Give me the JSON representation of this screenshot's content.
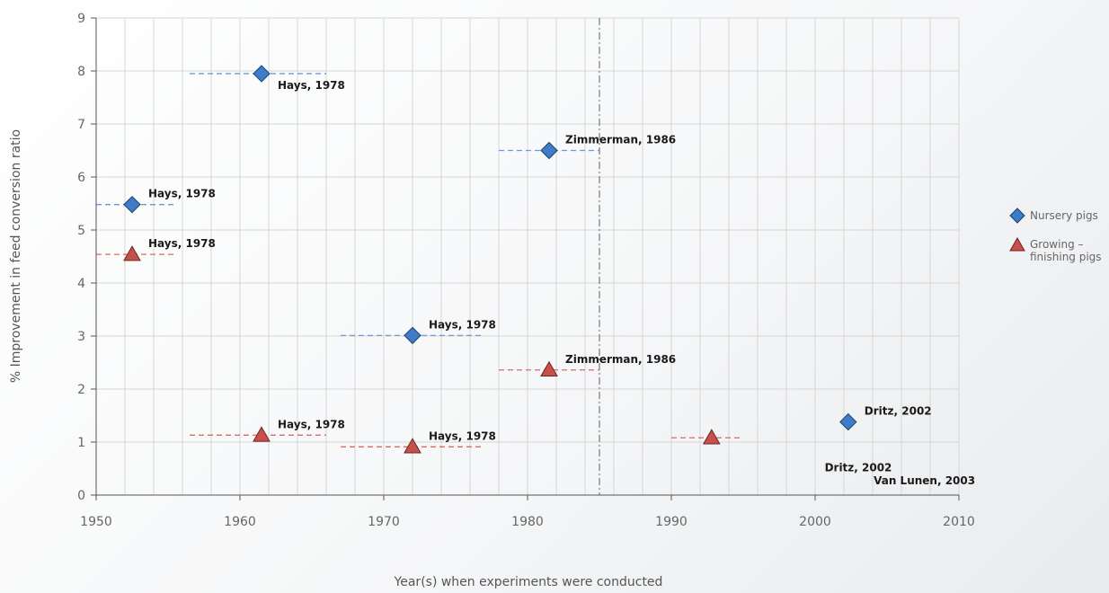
{
  "chart_data": {
    "type": "scatter",
    "title": "",
    "xlabel": "Year(s) when experiments were conducted",
    "ylabel": "% Improvement in feed conversion ratio",
    "xlim": [
      1950,
      2010
    ],
    "ylim": [
      0,
      9
    ],
    "x_ticks": [
      "1950",
      "1960",
      "1970",
      "1980",
      "1990",
      "2000",
      "2010"
    ],
    "y_ticks": [
      "0",
      "1",
      "2",
      "3",
      "4",
      "5",
      "6",
      "7",
      "8",
      "9"
    ],
    "grid": true,
    "legend_position": "right",
    "reference_line": {
      "x": 1985,
      "style": "dash-dot"
    },
    "series": [
      {
        "name": "Nursery pigs",
        "marker": "diamond",
        "color": "#3d7cc9",
        "range_color": "#6a9bd8",
        "points": [
          {
            "x": 1961.5,
            "y": 7.95,
            "x_range": [
              1956.5,
              1966
            ],
            "label": "Hays, 1978"
          },
          {
            "x": 1981.5,
            "y": 6.5,
            "x_range": [
              1978,
              1985
            ],
            "label": "Zimmerman, 1986"
          },
          {
            "x": 1952.5,
            "y": 5.48,
            "x_range": [
              1950,
              1955.5
            ],
            "label": "Hays, 1978"
          },
          {
            "x": 1972,
            "y": 3.01,
            "x_range": [
              1967,
              1977
            ],
            "label": "Hays, 1978"
          },
          {
            "x": 2002.3,
            "y": 1.38,
            "label": "Dritz, 2002"
          }
        ]
      },
      {
        "name": "Growing – finishing pigs",
        "name_lines": [
          "Growing –",
          "finishing pigs"
        ],
        "marker": "triangle",
        "color": "#c8504a",
        "range_color": "#d96b63",
        "points": [
          {
            "x": 1952.5,
            "y": 4.54,
            "x_range": [
              1950,
              1955.5
            ],
            "label": "Hays, 1978"
          },
          {
            "x": 1981.5,
            "y": 2.36,
            "x_range": [
              1978,
              1985
            ],
            "label": "Zimmerman, 1986"
          },
          {
            "x": 1961.5,
            "y": 1.13,
            "x_range": [
              1956.5,
              1966
            ],
            "label": "Hays, 1978"
          },
          {
            "x": 1972,
            "y": 0.91,
            "x_range": [
              1967,
              1977
            ],
            "label": "Hays, 1978"
          },
          {
            "x": 1992.8,
            "y": 1.08,
            "x_range": [
              1990,
              1995
            ]
          }
        ]
      }
    ],
    "annotations": [
      {
        "text": "Dritz, 2002",
        "x": 2003,
        "y": 0.45
      },
      {
        "text": "Van Lunen, 2003",
        "x": 2007.6,
        "y": 0.2
      }
    ]
  }
}
